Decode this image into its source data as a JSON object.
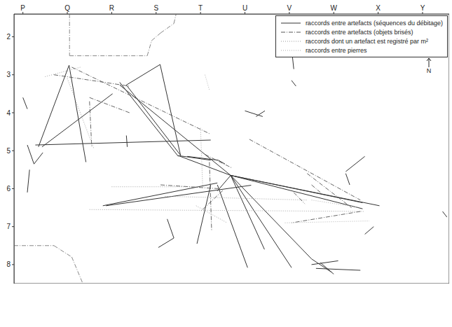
{
  "chart_data": {
    "type": "segments",
    "grid": false,
    "legend": "top-right",
    "north": "N",
    "xlim": [
      0.3,
      10.1
    ],
    "ylim": [
      1.4,
      8.5
    ],
    "xticks": [
      {
        "value": 0.5,
        "label": "P"
      },
      {
        "value": 1.5,
        "label": "Q"
      },
      {
        "value": 2.5,
        "label": "R"
      },
      {
        "value": 3.5,
        "label": "S"
      },
      {
        "value": 4.5,
        "label": "T"
      },
      {
        "value": 5.5,
        "label": "U"
      },
      {
        "value": 6.5,
        "label": "V"
      },
      {
        "value": 7.5,
        "label": "W"
      },
      {
        "value": 8.5,
        "label": "X"
      },
      {
        "value": 9.5,
        "label": "Y"
      }
    ],
    "yticks": [
      2,
      3,
      4,
      5,
      6,
      7,
      8
    ],
    "series": [
      {
        "name": "raccords entre artefacts (séquences du débitage)",
        "color": "#333333",
        "line_style": "solid",
        "segments": [
          [
            [
              0.78,
              4.85
            ],
            [
              4.73,
              4.72
            ]
          ],
          [
            [
              0.93,
              4.9
            ],
            [
              2.52,
              3.5
            ]
          ],
          [
            [
              1.54,
              2.75
            ],
            [
              1.92,
              5.3
            ]
          ],
          [
            [
              1.54,
              2.75
            ],
            [
              0.85,
              4.9
            ]
          ],
          [
            [
              2.68,
              3.2
            ],
            [
              4.0,
              5.15
            ]
          ],
          [
            [
              2.83,
              3.27
            ],
            [
              4.05,
              5.12
            ]
          ],
          [
            [
              3.59,
              2.73
            ],
            [
              2.83,
              3.27
            ]
          ],
          [
            [
              3.59,
              2.73
            ],
            [
              4.05,
              5.12
            ]
          ],
          [
            [
              4.0,
              5.13
            ],
            [
              5.18,
              5.65
            ]
          ],
          [
            [
              4.0,
              5.13
            ],
            [
              4.73,
              5.25
            ]
          ],
          [
            [
              5.18,
              5.65
            ],
            [
              8.15,
              6.37
            ]
          ],
          [
            [
              5.18,
              5.65
            ],
            [
              8.15,
              6.53
            ]
          ],
          [
            [
              5.18,
              5.65
            ],
            [
              8.53,
              6.45
            ]
          ],
          [
            [
              5.18,
              5.65
            ],
            [
              6.55,
              8.08
            ]
          ],
          [
            [
              5.18,
              5.65
            ],
            [
              5.94,
              7.6
            ]
          ],
          [
            [
              5.18,
              5.65
            ],
            [
              7.0,
              7.85
            ]
          ],
          [
            [
              5.18,
              5.65
            ],
            [
              2.68,
              3.27
            ]
          ],
          [
            [
              5.18,
              5.65
            ],
            [
              4.88,
              6.06
            ]
          ],
          [
            [
              2.3,
              6.45
            ],
            [
              4.88,
              5.85
            ]
          ],
          [
            [
              2.37,
              6.45
            ],
            [
              5.64,
              5.91
            ]
          ],
          [
            [
              4.88,
              5.9
            ],
            [
              5.56,
              8.08
            ]
          ],
          [
            [
              4.73,
              5.9
            ],
            [
              4.42,
              7.45
            ]
          ],
          [
            [
              7.77,
              5.55
            ],
            [
              8.2,
              5.15
            ]
          ],
          [
            [
              7.77,
              5.6
            ],
            [
              7.86,
              5.9
            ]
          ],
          [
            [
              7.0,
              7.85
            ],
            [
              7.45,
              8.2
            ]
          ],
          [
            [
              7.0,
              8.0
            ],
            [
              7.6,
              7.9
            ]
          ],
          [
            [
              7.1,
              8.1
            ],
            [
              8.1,
              8.15
            ]
          ],
          [
            [
              7.2,
              7.95
            ],
            [
              7.5,
              8.25
            ]
          ],
          [
            [
              6.55,
              2.3
            ],
            [
              6.6,
              2.85
            ]
          ],
          [
            [
              6.55,
              3.15
            ],
            [
              6.65,
              3.3
            ]
          ],
          [
            [
              5.5,
              3.95
            ],
            [
              5.9,
              4.1
            ]
          ],
          [
            [
              5.75,
              4.1
            ],
            [
              5.95,
              3.95
            ]
          ],
          [
            [
              0.5,
              3.6
            ],
            [
              0.6,
              3.9
            ]
          ],
          [
            [
              0.65,
              5.5
            ],
            [
              0.6,
              6.1
            ]
          ],
          [
            [
              2.83,
              4.6
            ],
            [
              2.85,
              4.9
            ]
          ],
          [
            [
              3.75,
              6.8
            ],
            [
              3.9,
              7.3
            ]
          ],
          [
            [
              3.9,
              7.3
            ],
            [
              3.55,
              7.55
            ]
          ],
          [
            [
              9.95,
              6.6
            ],
            [
              10.05,
              6.75
            ]
          ],
          [
            [
              8.2,
              7.2
            ],
            [
              8.4,
              7.0
            ]
          ],
          [
            [
              4.2,
              5.15
            ],
            [
              4.9,
              5.25
            ]
          ],
          [
            [
              4.9,
              5.25
            ],
            [
              5.05,
              5.35
            ]
          ],
          [
            [
              0.6,
              4.85
            ],
            [
              0.75,
              5.35
            ]
          ],
          [
            [
              0.75,
              5.35
            ],
            [
              0.95,
              5.05
            ]
          ]
        ]
      },
      {
        "name": "raccords entre artefacts (objets brisés)",
        "color": "#555555",
        "line_style": "dash_dot",
        "segments": [
          [
            [
              1.6,
              2.8
            ],
            [
              4.7,
              4.55
            ]
          ],
          [
            [
              1.2,
              3.0
            ],
            [
              2.9,
              3.3
            ]
          ],
          [
            [
              2.0,
              3.6
            ],
            [
              2.9,
              4.0
            ]
          ],
          [
            [
              2.0,
              3.7
            ],
            [
              2.05,
              4.9
            ]
          ],
          [
            [
              4.6,
              5.1
            ],
            [
              5.2,
              5.45
            ]
          ],
          [
            [
              5.6,
              4.7
            ],
            [
              8.1,
              6.3
            ]
          ],
          [
            [
              6.9,
              5.6
            ],
            [
              7.9,
              6.5
            ]
          ],
          [
            [
              3.6,
              5.9
            ],
            [
              4.9,
              6.0
            ]
          ],
          [
            [
              4.7,
              5.3
            ],
            [
              4.75,
              7.1
            ]
          ],
          [
            [
              5.0,
              6.05
            ],
            [
              4.5,
              6.6
            ]
          ],
          [
            [
              8.1,
              6.6
            ],
            [
              6.55,
              6.9
            ]
          ],
          [
            [
              7.0,
              5.9
            ],
            [
              7.2,
              6.1
            ]
          ],
          [
            [
              6.6,
              6.1
            ],
            [
              6.85,
              6.4
            ]
          ]
        ]
      },
      {
        "name": "raccords dont un artefact est registré par m²",
        "color": "#999999",
        "line_style": "dotted",
        "segments": [
          [
            [
              2.0,
              6.55
            ],
            [
              8.2,
              6.6
            ]
          ],
          [
            [
              3.7,
              6.2
            ],
            [
              6.9,
              6.3
            ]
          ],
          [
            [
              4.4,
              6.45
            ],
            [
              5.1,
              6.9
            ]
          ],
          [
            [
              2.5,
              5.95
            ],
            [
              4.5,
              5.95
            ]
          ],
          [
            [
              4.5,
              4.4
            ],
            [
              4.55,
              6.0
            ]
          ],
          [
            [
              1.5,
              3.1
            ],
            [
              2.1,
              4.95
            ]
          ],
          [
            [
              1.0,
              3.05
            ],
            [
              1.8,
              2.8
            ]
          ]
        ]
      },
      {
        "name": "raccords entre pierres",
        "color": "#aaaaaa",
        "line_style": "dotted",
        "segments": [
          [
            [
              6.4,
              6.9
            ],
            [
              8.3,
              6.85
            ]
          ],
          [
            [
              4.6,
              3.0
            ],
            [
              4.7,
              3.4
            ]
          ],
          [
            [
              7.0,
              6.3
            ],
            [
              8.1,
              6.5
            ]
          ]
        ]
      }
    ],
    "outlines": {
      "color": "#888888",
      "line_style": "dash_dot",
      "segments": [
        [
          [
            1.55,
            1.4
          ],
          [
            1.55,
            2.5
          ]
        ],
        [
          [
            1.55,
            2.5
          ],
          [
            3.3,
            2.5
          ]
        ],
        [
          [
            3.3,
            2.5
          ],
          [
            3.4,
            2.1
          ]
        ],
        [
          [
            3.4,
            2.1
          ],
          [
            3.6,
            1.9
          ]
        ],
        [
          [
            3.6,
            1.9
          ],
          [
            3.9,
            1.65
          ]
        ],
        [
          [
            3.9,
            1.65
          ],
          [
            3.95,
            1.4
          ]
        ],
        [
          [
            0.3,
            7.5
          ],
          [
            1.2,
            7.5
          ]
        ],
        [
          [
            1.2,
            7.5
          ],
          [
            1.6,
            7.8
          ]
        ],
        [
          [
            1.6,
            7.8
          ],
          [
            1.85,
            8.5
          ]
        ]
      ]
    }
  }
}
